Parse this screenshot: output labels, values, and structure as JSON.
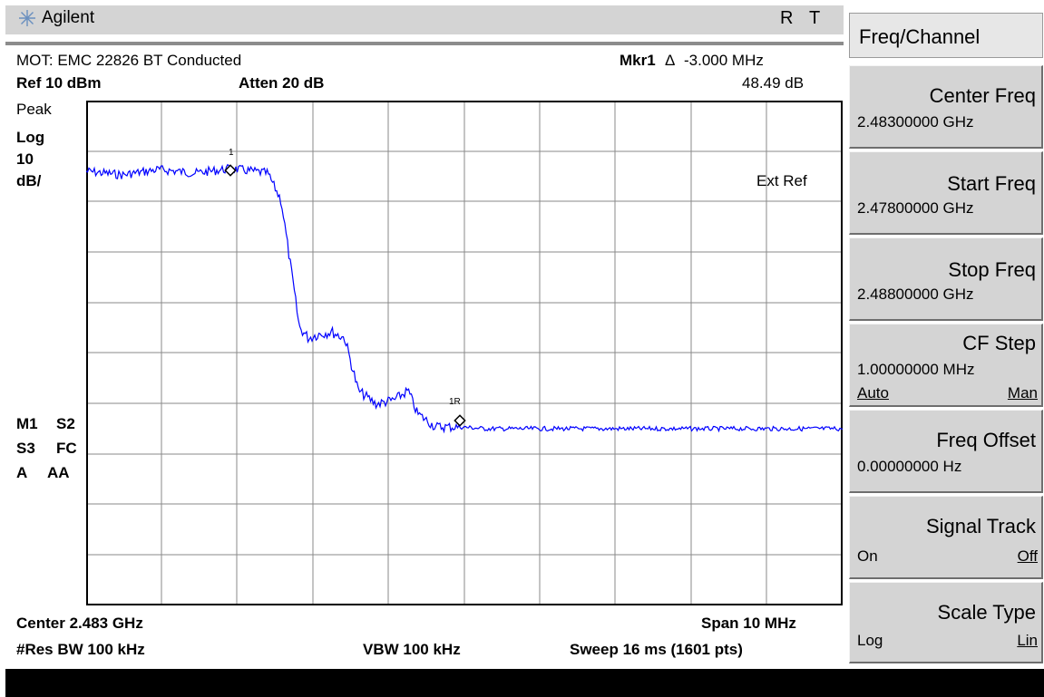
{
  "header": {
    "brand": "Agilent",
    "indicator_r": "R",
    "indicator_t": "T",
    "title": "MOT: EMC 22826 BT Conducted",
    "marker_label": "Mkr1",
    "marker_delta": "Δ",
    "marker_freq": "-3.000 MHz",
    "marker_amp": "48.49 dB",
    "ref_level": "Ref 10 dBm",
    "attenuation": "Atten 20 dB"
  },
  "left_annotations": {
    "detector": "Peak",
    "scale_type": "Log",
    "scale_value": "10",
    "scale_unit": "dB/",
    "m1": "M1",
    "s2": "S2",
    "s3": "S3",
    "fc": "FC",
    "a": "A",
    "aa": "AA"
  },
  "trace_annotations": {
    "ext_ref": "Ext Ref",
    "marker1_label": "1",
    "marker1r_label": "1R"
  },
  "footer": {
    "center": "Center 2.483 GHz",
    "span": "Span 10 MHz",
    "res_bw": "#Res BW 100 kHz",
    "vbw": "VBW 100 kHz",
    "sweep": "Sweep 16 ms (1601 pts)"
  },
  "softkeys": {
    "menu_title": "Freq/Channel",
    "center_freq": {
      "label": "Center Freq",
      "value": "2.48300000 GHz"
    },
    "start_freq": {
      "label": "Start Freq",
      "value": "2.47800000 GHz"
    },
    "stop_freq": {
      "label": "Stop Freq",
      "value": "2.48800000 GHz"
    },
    "cf_step": {
      "label": "CF Step",
      "value": "1.00000000 MHz",
      "opt_left": "Auto",
      "opt_right": "Man"
    },
    "freq_offset": {
      "label": "Freq Offset",
      "value": "0.00000000  Hz"
    },
    "signal_track": {
      "label": "Signal Track",
      "opt_left": "On",
      "opt_right": "Off"
    },
    "scale_type": {
      "label": "Scale Type",
      "opt_left": "Log",
      "opt_right": "Lin"
    }
  },
  "colors": {
    "trace": "#0000ff",
    "softkey_bg": "#d4d4d4",
    "status_bar": "#000000"
  }
}
